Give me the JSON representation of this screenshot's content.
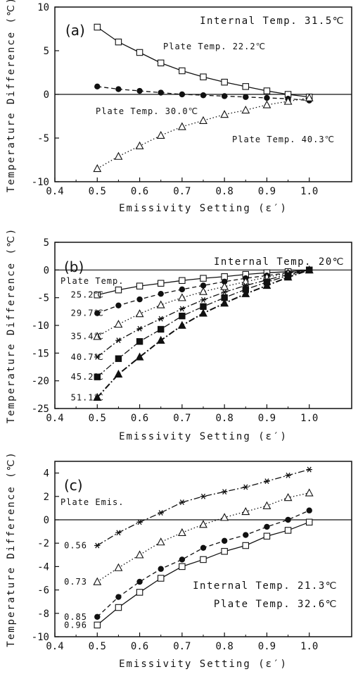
{
  "chart_data": [
    {
      "type": "line",
      "panel_label": "(a)",
      "xlabel": "Emissivity Setting (ε′)",
      "ylabel": "Temperature Difference (℃)",
      "xlim": [
        0.4,
        1.1
      ],
      "ylim": [
        -10,
        10
      ],
      "xticks": [
        "0.4",
        "0.5",
        "0.6",
        "0.7",
        "0.8",
        "0.9",
        "1.0"
      ],
      "yticks": [
        "10",
        "5",
        "0",
        "-5",
        "-10"
      ],
      "annotations": [
        "Internal Temp. 31.5℃",
        "Plate Temp. 22.2℃",
        "Plate Temp. 30.0℃",
        "Plate Temp. 40.3℃"
      ],
      "x": [
        0.5,
        0.55,
        0.6,
        0.65,
        0.7,
        0.75,
        0.8,
        0.85,
        0.9,
        0.95,
        1.0
      ],
      "series": [
        {
          "marker": "square-open",
          "dash": "solid",
          "values": [
            7.7,
            6.0,
            4.8,
            3.6,
            2.7,
            2.0,
            1.4,
            0.9,
            0.4,
            0.0,
            -0.3
          ]
        },
        {
          "marker": "circle-filled",
          "dash": "dashed",
          "values": [
            0.9,
            0.6,
            0.4,
            0.2,
            0.0,
            -0.1,
            -0.2,
            -0.3,
            -0.4,
            -0.5,
            -0.7
          ]
        },
        {
          "marker": "triangle-open",
          "dash": "dotted",
          "values": [
            -8.5,
            -7.1,
            -5.9,
            -4.7,
            -3.7,
            -3.0,
            -2.3,
            -1.8,
            -1.2,
            -0.8,
            -0.4
          ]
        }
      ]
    },
    {
      "type": "line",
      "panel_label": "(b)",
      "xlabel": "Emissivity Setting (ε′)",
      "ylabel": "Temperature Difference (℃)",
      "xlim": [
        0.4,
        1.1
      ],
      "ylim": [
        -25,
        5
      ],
      "xticks": [
        "0.4",
        "0.5",
        "0.6",
        "0.7",
        "0.8",
        "0.9",
        "1.0"
      ],
      "yticks": [
        "5",
        "0",
        "-5",
        "-10",
        "-15",
        "-20",
        "-25"
      ],
      "annotations": [
        "Internal Temp. 20℃",
        "Plate Temp."
      ],
      "x": [
        0.5,
        0.55,
        0.6,
        0.65,
        0.7,
        0.75,
        0.8,
        0.85,
        0.9,
        0.95,
        1.0
      ],
      "series": [
        {
          "name": "25.2℃",
          "marker": "square-open",
          "dash": "solid",
          "values": [
            -4.5,
            -3.6,
            -2.9,
            -2.4,
            -1.9,
            -1.5,
            -1.2,
            -0.8,
            -0.5,
            -0.3,
            0.0
          ]
        },
        {
          "name": "29.7℃",
          "marker": "circle-filled",
          "dash": "dashed",
          "values": [
            -7.8,
            -6.4,
            -5.3,
            -4.3,
            -3.5,
            -2.8,
            -2.1,
            -1.5,
            -1.0,
            -0.5,
            0.0
          ]
        },
        {
          "name": "35.4℃",
          "marker": "triangle-open",
          "dash": "dotted",
          "values": [
            -12.0,
            -9.8,
            -7.9,
            -6.3,
            -5.0,
            -3.9,
            -3.0,
            -2.1,
            -1.3,
            -0.6,
            0.0
          ]
        },
        {
          "name": "40.7℃",
          "marker": "asterisk",
          "dash": "dashdot",
          "values": [
            -15.7,
            -12.7,
            -10.6,
            -8.8,
            -7.0,
            -5.4,
            -4.0,
            -2.8,
            -1.8,
            -0.8,
            0.0
          ]
        },
        {
          "name": "45.2℃",
          "marker": "square-filled",
          "dash": "dashdot",
          "values": [
            -19.3,
            -16.0,
            -12.9,
            -10.7,
            -8.3,
            -6.6,
            -5.0,
            -3.5,
            -2.2,
            -1.0,
            0.0
          ]
        },
        {
          "name": "51.1℃",
          "marker": "triangle-filled",
          "dash": "dashdot",
          "values": [
            -23.0,
            -18.8,
            -15.7,
            -12.7,
            -10.0,
            -7.8,
            -6.0,
            -4.3,
            -2.8,
            -1.3,
            0.0
          ]
        }
      ]
    },
    {
      "type": "line",
      "panel_label": "(c)",
      "xlabel": "Emissivity Setting (ε′)",
      "ylabel": "Temperature Difference (℃)",
      "xlim": [
        0.4,
        1.1
      ],
      "ylim": [
        -10,
        5
      ],
      "xticks": [
        "0.4",
        "0.5",
        "0.6",
        "0.7",
        "0.8",
        "0.9",
        "1.0"
      ],
      "yticks": [
        "4",
        "2",
        "0",
        "-2",
        "-4",
        "-6",
        "-8",
        "-10"
      ],
      "annotations": [
        "Plate Emis.",
        "Internal Temp. 21.3℃",
        "Plate Temp. 32.6℃"
      ],
      "x": [
        0.5,
        0.55,
        0.6,
        0.65,
        0.7,
        0.75,
        0.8,
        0.85,
        0.9,
        0.95,
        1.0
      ],
      "series": [
        {
          "name": "0.56",
          "marker": "asterisk",
          "dash": "dashdot",
          "values": [
            -2.2,
            -1.1,
            -0.2,
            0.6,
            1.5,
            2.0,
            2.4,
            2.8,
            3.3,
            3.8,
            4.3
          ]
        },
        {
          "name": "0.73",
          "marker": "triangle-open",
          "dash": "dotted",
          "values": [
            -5.3,
            -4.1,
            -3.0,
            -1.9,
            -1.1,
            -0.4,
            0.2,
            0.7,
            1.2,
            1.9,
            2.3
          ]
        },
        {
          "name": "0.85",
          "marker": "circle-filled",
          "dash": "dashed",
          "values": [
            -8.3,
            -6.6,
            -5.3,
            -4.2,
            -3.4,
            -2.4,
            -1.8,
            -1.3,
            -0.6,
            0.0,
            0.8
          ]
        },
        {
          "name": "0.96",
          "marker": "square-open",
          "dash": "solid",
          "values": [
            -9.0,
            -7.5,
            -6.2,
            -5.0,
            -4.0,
            -3.4,
            -2.7,
            -2.2,
            -1.4,
            -0.9,
            -0.2
          ]
        }
      ]
    }
  ]
}
